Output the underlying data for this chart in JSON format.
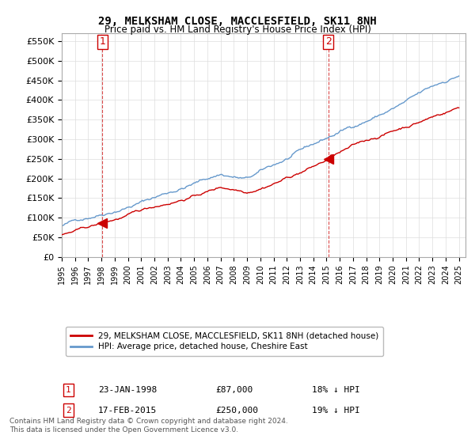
{
  "title": "29, MELKSHAM CLOSE, MACCLESFIELD, SK11 8NH",
  "subtitle": "Price paid vs. HM Land Registry's House Price Index (HPI)",
  "legend_label_red": "29, MELKSHAM CLOSE, MACCLESFIELD, SK11 8NH (detached house)",
  "legend_label_blue": "HPI: Average price, detached house, Cheshire East",
  "transaction1_label": "1",
  "transaction1_date": "23-JAN-1998",
  "transaction1_price": "£87,000",
  "transaction1_hpi": "18% ↓ HPI",
  "transaction1_year": 1998.07,
  "transaction1_value": 87000,
  "transaction2_label": "2",
  "transaction2_date": "17-FEB-2015",
  "transaction2_price": "£250,000",
  "transaction2_hpi": "19% ↓ HPI",
  "transaction2_year": 2015.13,
  "transaction2_value": 250000,
  "red_color": "#cc0000",
  "blue_color": "#6699cc",
  "background_color": "#ffffff",
  "grid_color": "#dddddd",
  "ylim_min": 0,
  "ylim_max": 570000,
  "xmin": 1995.0,
  "xmax": 2025.5,
  "footnote": "Contains HM Land Registry data © Crown copyright and database right 2024.\nThis data is licensed under the Open Government Licence v3.0."
}
